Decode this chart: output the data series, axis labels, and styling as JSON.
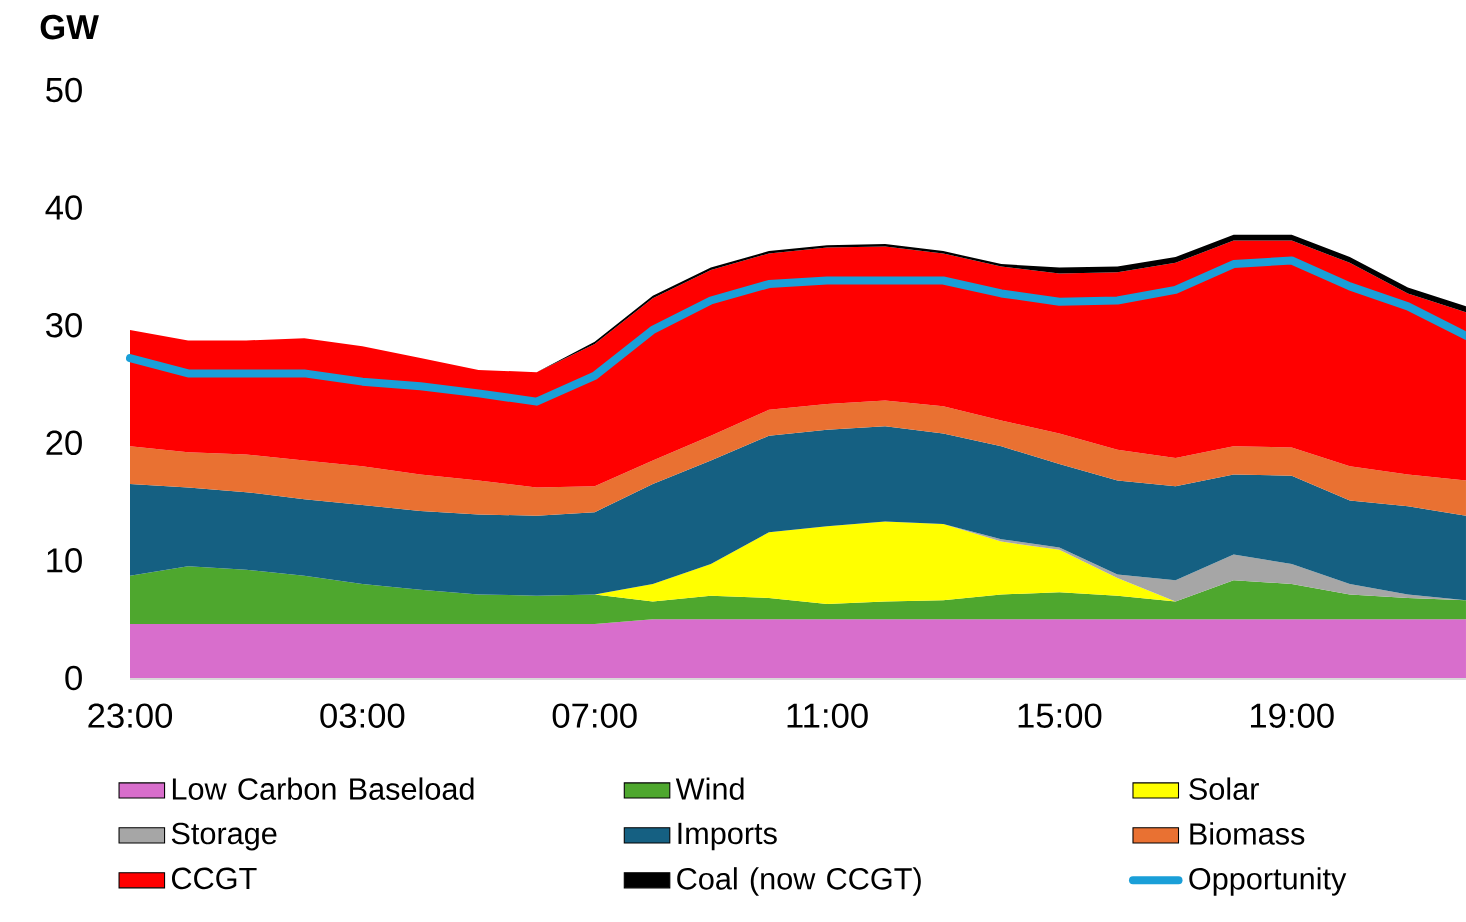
{
  "chart_data": {
    "type": "area",
    "stacked": true,
    "ylabel": "GW",
    "legend": "bottom",
    "categories": [
      "23:00",
      null,
      null,
      null,
      "03:00",
      null,
      null,
      null,
      "07:00",
      null,
      null,
      null,
      "11:00",
      null,
      null,
      null,
      "15:00",
      null,
      null,
      null,
      "19:00",
      null,
      null,
      null
    ],
    "ylim": [
      0,
      50
    ],
    "yticks": [
      0,
      10,
      20,
      30,
      40,
      50
    ],
    "series": [
      {
        "name": "Low Carbon Baseload",
        "color": "#d86ecc",
        "values": [
          4.6,
          4.6,
          4.6,
          4.6,
          4.6,
          4.6,
          4.6,
          4.6,
          4.6,
          5.0,
          5.0,
          5.0,
          5.0,
          5.0,
          5.0,
          5.0,
          5.0,
          5.0,
          5.0,
          5.0,
          5.0,
          5.0,
          5.0,
          5.0
        ]
      },
      {
        "name": "Wind",
        "color": "#4ea72e",
        "values": [
          4.1,
          4.9,
          4.6,
          4.1,
          3.4,
          2.9,
          2.5,
          2.4,
          2.5,
          1.5,
          2.0,
          1.8,
          1.3,
          1.5,
          1.6,
          2.1,
          2.3,
          2.0,
          1.5,
          3.3,
          3.0,
          2.1,
          1.8,
          1.6
        ]
      },
      {
        "name": "Solar",
        "color": "#ffff00",
        "values": [
          0,
          0,
          0,
          0,
          0,
          0,
          0,
          0,
          0,
          1.5,
          2.7,
          5.6,
          6.6,
          6.8,
          6.5,
          4.5,
          3.6,
          1.5,
          0,
          0,
          0,
          0,
          0,
          0
        ]
      },
      {
        "name": "Storage",
        "color": "#a6a6a6",
        "values": [
          0,
          0,
          0,
          0,
          0,
          0,
          0,
          0,
          0,
          0,
          0,
          0,
          0,
          0,
          0,
          0.2,
          0.2,
          0.3,
          1.8,
          2.2,
          1.7,
          0.9,
          0.3,
          0
        ]
      },
      {
        "name": "Imports",
        "color": "#156082",
        "values": [
          7.8,
          6.7,
          6.6,
          6.5,
          6.7,
          6.7,
          6.8,
          6.8,
          7.0,
          8.5,
          8.8,
          8.2,
          8.2,
          8.1,
          7.7,
          7.9,
          7.1,
          8.0,
          8.0,
          6.8,
          7.5,
          7.1,
          7.5,
          7.2
        ]
      },
      {
        "name": "Biomass",
        "color": "#e97132",
        "values": [
          3.2,
          3.0,
          3.2,
          3.3,
          3.3,
          3.1,
          2.9,
          2.4,
          2.2,
          2.0,
          2.1,
          2.2,
          2.2,
          2.2,
          2.3,
          2.2,
          2.6,
          2.6,
          2.4,
          2.4,
          2.4,
          2.9,
          2.7,
          3.0
        ]
      },
      {
        "name": "CCGT",
        "color": "#ff0000",
        "values": [
          9.9,
          9.5,
          9.7,
          10.4,
          10.2,
          9.9,
          9.4,
          9.8,
          12.1,
          13.8,
          14.1,
          13.3,
          13.3,
          13.1,
          13.0,
          13.1,
          13.6,
          15.1,
          16.6,
          17.5,
          17.6,
          17.3,
          15.4,
          14.3
        ]
      },
      {
        "name": "Coal (now CCGT)",
        "color": "#000000",
        "values": [
          0,
          0,
          0,
          0,
          0,
          0,
          0,
          0,
          0.2,
          0.2,
          0.2,
          0.2,
          0.2,
          0.2,
          0.2,
          0.2,
          0.5,
          0.5,
          0.5,
          0.5,
          0.5,
          0.5,
          0.5,
          0.5
        ]
      },
      {
        "name": "Opportunity",
        "type": "line",
        "color": "#1a9fd8",
        "values": [
          27.2,
          25.9,
          25.9,
          25.9,
          25.2,
          24.8,
          24.2,
          23.5,
          25.7,
          29.6,
          32.1,
          33.5,
          33.8,
          33.8,
          33.8,
          32.7,
          32.0,
          32.1,
          33.0,
          35.2,
          35.5,
          33.3,
          31.6,
          29.1
        ]
      }
    ]
  }
}
